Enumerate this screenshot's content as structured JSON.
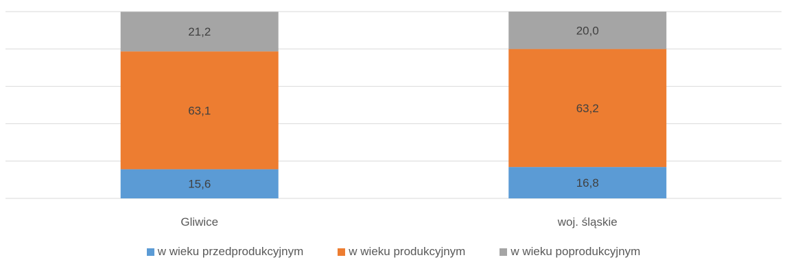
{
  "chart_data": {
    "type": "bar",
    "stacked": true,
    "categories": [
      "Gliwice",
      "woj. śląskie"
    ],
    "series": [
      {
        "name": "w wieku przedprodukcyjnym",
        "values": [
          15.6,
          16.8
        ],
        "labels": [
          "15,6",
          "16,8"
        ],
        "color": "#5B9BD5"
      },
      {
        "name": "w wieku produkcyjnym",
        "values": [
          63.1,
          63.2
        ],
        "labels": [
          "63,1",
          "63,2"
        ],
        "color": "#ED7D31"
      },
      {
        "name": "w wieku poprodukcyjnym",
        "values": [
          21.2,
          20.0
        ],
        "labels": [
          "21,2",
          "20,0"
        ],
        "color": "#A5A5A5"
      }
    ],
    "ylim": [
      0,
      100
    ],
    "grid": true,
    "legend": "bottom"
  }
}
